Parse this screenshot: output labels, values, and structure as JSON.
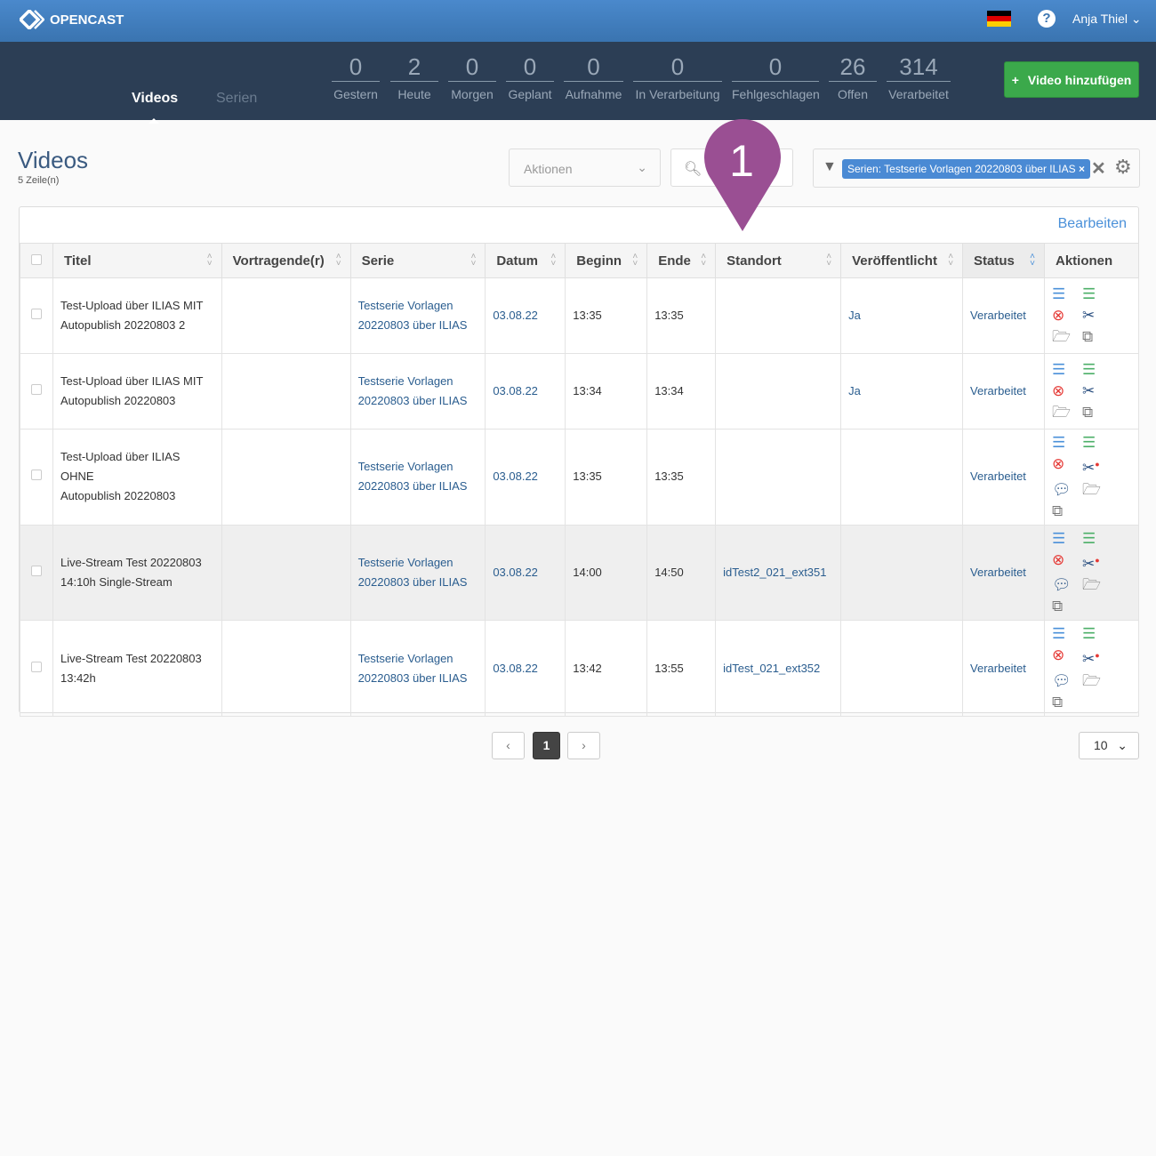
{
  "header": {
    "brand": "OPENCAST",
    "user": "Anja Thiel",
    "help": "?"
  },
  "nav": {
    "tabs": [
      {
        "label": "Videos"
      },
      {
        "label": "Serien"
      }
    ],
    "stats": [
      {
        "n": "0",
        "l": "Gestern"
      },
      {
        "n": "2",
        "l": "Heute"
      },
      {
        "n": "0",
        "l": "Morgen"
      },
      {
        "n": "0",
        "l": "Geplant"
      },
      {
        "n": "0",
        "l": "Aufnahme"
      },
      {
        "n": "0",
        "l": "In Verarbeitung"
      },
      {
        "n": "0",
        "l": "Fehlgeschlagen"
      },
      {
        "n": "26",
        "l": "Offen"
      },
      {
        "n": "314",
        "l": "Verarbeitet"
      }
    ],
    "add_button": "Video hinzufügen"
  },
  "page": {
    "title": "Videos",
    "row_count": "5 Zeile(n)",
    "actions_placeholder": "Aktionen",
    "filter_chip": "Serien: Testserie Vorlagen 20220803 über ILIAS",
    "edit_link": "Bearbeiten"
  },
  "marker": {
    "label": "1",
    "color": "#9a4f93"
  },
  "table": {
    "columns": [
      "Titel",
      "Vortragende(r)",
      "Serie",
      "Datum",
      "Beginn",
      "Ende",
      "Standort",
      "Veröffentlicht",
      "Status",
      "Aktionen"
    ],
    "rows": [
      {
        "title": [
          "Test-Upload über ILIAS MIT",
          "Autopublish 20220803 2"
        ],
        "presenter": "",
        "series": [
          "Testserie Vorlagen",
          "20220803 über ILIAS"
        ],
        "date": "03.08.22",
        "start": "13:35",
        "end": "13:35",
        "location": "",
        "published": "Ja",
        "status": "Verarbeitet",
        "comment": false
      },
      {
        "title": [
          "Test-Upload über ILIAS MIT",
          "Autopublish 20220803"
        ],
        "presenter": "",
        "series": [
          "Testserie Vorlagen",
          "20220803 über ILIAS"
        ],
        "date": "03.08.22",
        "start": "13:34",
        "end": "13:34",
        "location": "",
        "published": "Ja",
        "status": "Verarbeitet",
        "comment": false
      },
      {
        "title": [
          "Test-Upload über ILIAS OHNE",
          "Autopublish 20220803"
        ],
        "presenter": "",
        "series": [
          "Testserie Vorlagen",
          "20220803 über ILIAS"
        ],
        "date": "03.08.22",
        "start": "13:35",
        "end": "13:35",
        "location": "",
        "published": "",
        "status": "Verarbeitet",
        "comment": true
      },
      {
        "title": [
          "Live-Stream Test 20220803",
          "14:10h Single-Stream"
        ],
        "presenter": "",
        "series": [
          "Testserie Vorlagen",
          "20220803 über ILIAS"
        ],
        "date": "03.08.22",
        "start": "14:00",
        "end": "14:50",
        "location": "idTest2_021_ext351",
        "published": "",
        "status": "Verarbeitet",
        "comment": true
      },
      {
        "title": [
          "Live-Stream Test 20220803",
          "13:42h"
        ],
        "presenter": "",
        "series": [
          "Testserie Vorlagen",
          "20220803 über ILIAS"
        ],
        "date": "03.08.22",
        "start": "13:42",
        "end": "13:55",
        "location": "idTest_021_ext352",
        "published": "",
        "status": "Verarbeitet",
        "comment": true
      }
    ]
  },
  "pagination": {
    "current": "1",
    "page_size": "10"
  }
}
